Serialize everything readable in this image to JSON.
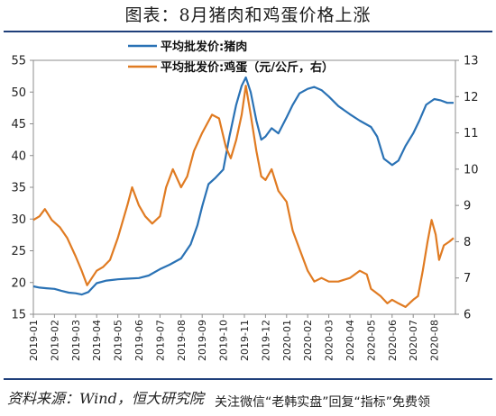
{
  "title": "图表：8月猪肉和鸡蛋价格上涨",
  "source": "资料来源：Wind，恒大研究院",
  "watermark": "关注微信“老韩实盘”回复“指标”免费领",
  "chart_data": {
    "type": "line",
    "title": "图表：8月猪肉和鸡蛋价格上涨",
    "x_ticks": [
      "2019-01",
      "2019-02",
      "2019-03",
      "2019-04",
      "2019-05",
      "2019-06",
      "2019-07",
      "2019-08",
      "2019-09",
      "2019-10",
      "2019-11",
      "2019-12",
      "2020-01",
      "2020-02",
      "2020-03",
      "2020-04",
      "2020-05",
      "2020-06",
      "2020-07",
      "2020-08"
    ],
    "y_left": {
      "min": 15,
      "max": 55,
      "ticks": [
        15,
        20,
        25,
        30,
        35,
        40,
        45,
        50,
        55
      ]
    },
    "y_right": {
      "min": 6,
      "max": 13,
      "ticks": [
        6,
        7,
        8,
        9,
        10,
        11,
        12,
        13
      ]
    },
    "legend_position": "top-center",
    "grid": false,
    "series": [
      {
        "name": "平均批发价:猪肉",
        "axis": "left",
        "color": "#2a72b5",
        "points": [
          [
            "2019-01-01",
            19.4
          ],
          [
            "2019-01-10",
            19.2
          ],
          [
            "2019-01-20",
            19.1
          ],
          [
            "2019-02-01",
            19.0
          ],
          [
            "2019-02-10",
            18.7
          ],
          [
            "2019-02-20",
            18.4
          ],
          [
            "2019-03-01",
            18.3
          ],
          [
            "2019-03-10",
            18.1
          ],
          [
            "2019-03-20",
            18.5
          ],
          [
            "2019-04-01",
            19.9
          ],
          [
            "2019-04-15",
            20.3
          ],
          [
            "2019-05-01",
            20.5
          ],
          [
            "2019-05-15",
            20.6
          ],
          [
            "2019-06-01",
            20.7
          ],
          [
            "2019-06-15",
            21.1
          ],
          [
            "2019-07-01",
            22.1
          ],
          [
            "2019-07-15",
            22.8
          ],
          [
            "2019-08-01",
            23.8
          ],
          [
            "2019-08-15",
            26.0
          ],
          [
            "2019-08-25",
            29.0
          ],
          [
            "2019-09-01",
            32.0
          ],
          [
            "2019-09-10",
            35.5
          ],
          [
            "2019-09-20",
            36.5
          ],
          [
            "2019-10-01",
            37.8
          ],
          [
            "2019-10-10",
            43.0
          ],
          [
            "2019-10-20",
            48.0
          ],
          [
            "2019-10-28",
            51.0
          ],
          [
            "2019-11-03",
            52.3
          ],
          [
            "2019-11-10",
            50.0
          ],
          [
            "2019-11-18",
            45.5
          ],
          [
            "2019-11-25",
            42.5
          ],
          [
            "2019-12-01",
            43.0
          ],
          [
            "2019-12-10",
            44.3
          ],
          [
            "2019-12-20",
            43.5
          ],
          [
            "2020-01-01",
            46.0
          ],
          [
            "2020-01-10",
            48.0
          ],
          [
            "2020-01-20",
            49.8
          ],
          [
            "2020-02-01",
            50.5
          ],
          [
            "2020-02-10",
            50.8
          ],
          [
            "2020-02-20",
            50.3
          ],
          [
            "2020-03-01",
            49.3
          ],
          [
            "2020-03-15",
            47.8
          ],
          [
            "2020-04-01",
            46.5
          ],
          [
            "2020-04-15",
            45.5
          ],
          [
            "2020-05-01",
            44.5
          ],
          [
            "2020-05-10",
            43.0
          ],
          [
            "2020-05-20",
            39.5
          ],
          [
            "2020-06-01",
            38.5
          ],
          [
            "2020-06-10",
            39.2
          ],
          [
            "2020-06-20",
            41.5
          ],
          [
            "2020-07-01",
            43.5
          ],
          [
            "2020-07-10",
            45.5
          ],
          [
            "2020-07-20",
            48.0
          ],
          [
            "2020-08-01",
            48.9
          ],
          [
            "2020-08-10",
            48.7
          ],
          [
            "2020-08-20",
            48.3
          ],
          [
            "2020-08-31",
            48.3
          ]
        ]
      },
      {
        "name": "平均批发价:鸡蛋（元/公斤，右）",
        "axis": "right",
        "color": "#e07b22",
        "points": [
          [
            "2019-01-01",
            8.6
          ],
          [
            "2019-01-10",
            8.7
          ],
          [
            "2019-01-18",
            8.9
          ],
          [
            "2019-01-28",
            8.6
          ],
          [
            "2019-02-08",
            8.4
          ],
          [
            "2019-02-18",
            8.1
          ],
          [
            "2019-03-01",
            7.6
          ],
          [
            "2019-03-10",
            7.2
          ],
          [
            "2019-03-18",
            6.8
          ],
          [
            "2019-03-25",
            7.0
          ],
          [
            "2019-04-01",
            7.2
          ],
          [
            "2019-04-10",
            7.3
          ],
          [
            "2019-04-20",
            7.5
          ],
          [
            "2019-05-01",
            8.1
          ],
          [
            "2019-05-15",
            9.0
          ],
          [
            "2019-05-22",
            9.5
          ],
          [
            "2019-06-01",
            9.0
          ],
          [
            "2019-06-10",
            8.7
          ],
          [
            "2019-06-20",
            8.5
          ],
          [
            "2019-07-01",
            8.7
          ],
          [
            "2019-07-10",
            9.5
          ],
          [
            "2019-07-20",
            10.0
          ],
          [
            "2019-08-01",
            9.5
          ],
          [
            "2019-08-10",
            9.8
          ],
          [
            "2019-08-20",
            10.5
          ],
          [
            "2019-09-01",
            11.0
          ],
          [
            "2019-09-15",
            11.5
          ],
          [
            "2019-09-25",
            11.4
          ],
          [
            "2019-10-05",
            10.6
          ],
          [
            "2019-10-12",
            10.3
          ],
          [
            "2019-10-20",
            10.8
          ],
          [
            "2019-10-28",
            11.5
          ],
          [
            "2019-11-03",
            12.3
          ],
          [
            "2019-11-10",
            11.5
          ],
          [
            "2019-11-18",
            10.5
          ],
          [
            "2019-11-25",
            9.8
          ],
          [
            "2019-12-01",
            9.7
          ],
          [
            "2019-12-10",
            10.0
          ],
          [
            "2019-12-20",
            9.4
          ],
          [
            "2020-01-01",
            9.1
          ],
          [
            "2020-01-10",
            8.3
          ],
          [
            "2020-01-20",
            7.8
          ],
          [
            "2020-02-01",
            7.2
          ],
          [
            "2020-02-10",
            6.9
          ],
          [
            "2020-02-20",
            7.0
          ],
          [
            "2020-03-01",
            6.9
          ],
          [
            "2020-03-15",
            6.9
          ],
          [
            "2020-04-01",
            7.0
          ],
          [
            "2020-04-15",
            7.2
          ],
          [
            "2020-04-25",
            7.1
          ],
          [
            "2020-05-01",
            6.7
          ],
          [
            "2020-05-15",
            6.5
          ],
          [
            "2020-05-25",
            6.3
          ],
          [
            "2020-06-01",
            6.4
          ],
          [
            "2020-06-10",
            6.3
          ],
          [
            "2020-06-20",
            6.2
          ],
          [
            "2020-07-01",
            6.4
          ],
          [
            "2020-07-08",
            6.5
          ],
          [
            "2020-07-15",
            7.2
          ],
          [
            "2020-07-22",
            8.0
          ],
          [
            "2020-07-28",
            8.6
          ],
          [
            "2020-08-03",
            8.2
          ],
          [
            "2020-08-08",
            7.5
          ],
          [
            "2020-08-15",
            7.9
          ],
          [
            "2020-08-23",
            8.0
          ],
          [
            "2020-08-31",
            8.1
          ]
        ]
      }
    ]
  }
}
